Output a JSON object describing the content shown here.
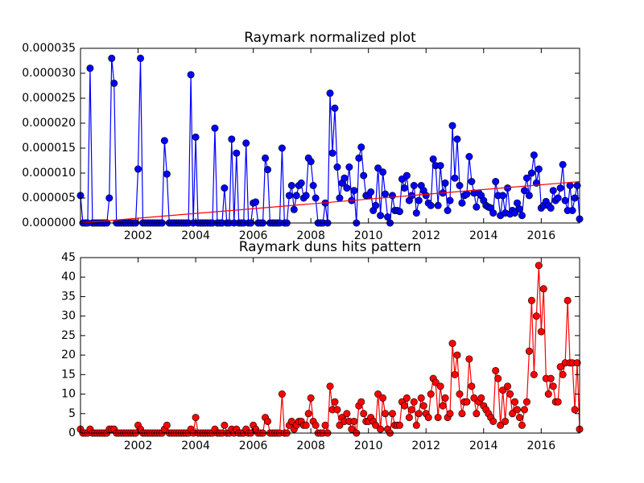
{
  "chart_data": [
    {
      "type": "line",
      "title": "Raymark normalized plot",
      "x": [
        2000,
        2000.083,
        2000.167,
        2000.25,
        2000.333,
        2000.417,
        2000.5,
        2000.583,
        2000.667,
        2000.75,
        2000.833,
        2000.917,
        2001,
        2001.083,
        2001.167,
        2001.25,
        2001.333,
        2001.417,
        2001.5,
        2001.583,
        2001.667,
        2001.75,
        2001.833,
        2001.917,
        2002,
        2002.083,
        2002.167,
        2002.25,
        2002.333,
        2002.417,
        2002.5,
        2002.583,
        2002.667,
        2002.75,
        2002.833,
        2002.917,
        2003,
        2003.083,
        2003.167,
        2003.25,
        2003.333,
        2003.417,
        2003.5,
        2003.583,
        2003.667,
        2003.75,
        2003.833,
        2003.917,
        2004,
        2004.083,
        2004.167,
        2004.25,
        2004.333,
        2004.417,
        2004.5,
        2004.583,
        2004.667,
        2004.75,
        2004.833,
        2004.917,
        2005,
        2005.083,
        2005.167,
        2005.25,
        2005.333,
        2005.417,
        2005.5,
        2005.583,
        2005.667,
        2005.75,
        2005.833,
        2005.917,
        2006,
        2006.083,
        2006.167,
        2006.25,
        2006.333,
        2006.417,
        2006.5,
        2006.583,
        2006.667,
        2006.75,
        2006.833,
        2006.917,
        2007,
        2007.083,
        2007.167,
        2007.25,
        2007.333,
        2007.417,
        2007.5,
        2007.583,
        2007.667,
        2007.75,
        2007.833,
        2007.917,
        2008,
        2008.083,
        2008.167,
        2008.25,
        2008.333,
        2008.417,
        2008.5,
        2008.583,
        2008.667,
        2008.75,
        2008.833,
        2008.917,
        2009,
        2009.083,
        2009.167,
        2009.25,
        2009.333,
        2009.417,
        2009.5,
        2009.583,
        2009.667,
        2009.75,
        2009.833,
        2009.917,
        2010,
        2010.083,
        2010.167,
        2010.25,
        2010.333,
        2010.417,
        2010.5,
        2010.583,
        2010.667,
        2010.75,
        2010.833,
        2010.917,
        2011,
        2011.083,
        2011.167,
        2011.25,
        2011.333,
        2011.417,
        2011.5,
        2011.583,
        2011.667,
        2011.75,
        2011.833,
        2011.917,
        2012,
        2012.083,
        2012.167,
        2012.25,
        2012.333,
        2012.417,
        2012.5,
        2012.583,
        2012.667,
        2012.75,
        2012.833,
        2012.917,
        2013,
        2013.083,
        2013.167,
        2013.25,
        2013.333,
        2013.417,
        2013.5,
        2013.583,
        2013.667,
        2013.75,
        2013.833,
        2013.917,
        2014,
        2014.083,
        2014.167,
        2014.25,
        2014.333,
        2014.417,
        2014.5,
        2014.583,
        2014.667,
        2014.75,
        2014.833,
        2014.917,
        2015,
        2015.083,
        2015.167,
        2015.25,
        2015.333,
        2015.417,
        2015.5,
        2015.583,
        2015.667,
        2015.75,
        2015.833,
        2015.917,
        2016,
        2016.083,
        2016.167,
        2016.25,
        2016.333,
        2016.417,
        2016.5,
        2016.583,
        2016.667,
        2016.75,
        2016.833,
        2016.917,
        2017,
        2017.083,
        2017.167,
        2017.25,
        2017.333
      ],
      "series": [
        {
          "color": "#0000ff",
          "marker": "o",
          "values": [
            5.5e-06,
            0,
            0,
            0,
            3.1e-05,
            0,
            0,
            0,
            0,
            0,
            0,
            0,
            5e-06,
            3.3e-05,
            2.8e-05,
            0,
            0,
            0,
            0,
            0,
            0,
            0,
            0,
            0,
            1.08e-05,
            3.3e-05,
            0,
            0,
            0,
            0,
            0,
            0,
            0,
            0,
            0,
            1.65e-05,
            9.8e-06,
            0,
            0,
            0,
            0,
            0,
            0,
            0,
            0,
            0,
            2.97e-05,
            0,
            1.72e-05,
            0,
            0,
            0,
            0,
            0,
            0,
            0,
            1.9e-05,
            0,
            0,
            0,
            7e-06,
            0,
            0,
            1.68e-05,
            0,
            1.4e-05,
            0,
            0,
            0,
            1.6e-05,
            0,
            0,
            4e-06,
            4.2e-06,
            0,
            0,
            0,
            1.3e-05,
            1.07e-05,
            0,
            0,
            0,
            0,
            0,
            1.5e-05,
            0,
            0,
            5.5e-06,
            7.5e-06,
            2.7e-06,
            5.5e-06,
            7.5e-06,
            8e-06,
            5e-06,
            5.5e-06,
            1.3e-05,
            1.23e-05,
            7.5e-06,
            5e-06,
            0,
            0,
            0,
            4e-06,
            0,
            2.6e-05,
            1.4e-05,
            2.3e-05,
            1.12e-05,
            5e-06,
            8e-06,
            9e-06,
            7e-06,
            1.12e-05,
            4.5e-06,
            6.5e-06,
            0,
            1.3e-05,
            1.52e-05,
            9.5e-06,
            5.5e-06,
            5.5e-06,
            6.2e-06,
            2.5e-06,
            3.5e-06,
            1.1e-05,
            1.5e-06,
            1.02e-05,
            5.8e-06,
            1.2e-06,
            0,
            5.5e-06,
            2.5e-06,
            2.5e-06,
            2.3e-06,
            8.8e-06,
            7e-06,
            9.5e-06,
            4.5e-06,
            5.5e-06,
            7.5e-06,
            2e-06,
            4.5e-06,
            7.5e-06,
            6.5e-06,
            5.5e-06,
            4e-06,
            3.5e-06,
            1.28e-05,
            1.15e-05,
            3.5e-06,
            1.15e-05,
            6e-06,
            8e-06,
            2.5e-06,
            4.5e-06,
            1.95e-05,
            9e-06,
            1.68e-05,
            7.5e-06,
            4e-06,
            5.5e-06,
            5.8e-06,
            1.33e-05,
            8.3e-06,
            6e-06,
            3.2e-06,
            6e-06,
            5.5e-06,
            4.5e-06,
            3.5e-06,
            3.2e-06,
            3e-06,
            2e-06,
            8.3e-06,
            5.5e-06,
            1.5e-06,
            5.5e-06,
            2e-06,
            7e-06,
            1.8e-06,
            2.5e-06,
            2e-06,
            4e-06,
            2.8e-06,
            1.5e-06,
            6.5e-06,
            9e-06,
            5.5e-06,
            1e-05,
            1.36e-05,
            8e-06,
            1.08e-05,
            3e-06,
            3.5e-06,
            4.3e-06,
            3.5e-06,
            3e-06,
            6.5e-06,
            4.5e-06,
            5e-06,
            7e-06,
            1.17e-05,
            4.5e-06,
            2.5e-06,
            7.5e-06,
            2.5e-06,
            5e-06,
            7.5e-06,
            8e-07
          ]
        },
        {
          "color": "#ff0000",
          "x": [
            2000,
            2017.333
          ],
          "values": [
            0,
            8.3e-06
          ]
        }
      ],
      "xlim": [
        2000,
        2017.333
      ],
      "xticks": [
        2002,
        2004,
        2006,
        2008,
        2010,
        2012,
        2014,
        2016
      ],
      "ylim": [
        0,
        3.5e-05
      ],
      "yticks": [
        {
          "value": 0,
          "label": "0.000000"
        },
        {
          "value": 5e-06,
          "label": "0.000005"
        },
        {
          "value": 1e-05,
          "label": "0.000010"
        },
        {
          "value": 1.5e-05,
          "label": "0.000015"
        },
        {
          "value": 2e-05,
          "label": "0.000020"
        },
        {
          "value": 2.5e-05,
          "label": "0.000025"
        },
        {
          "value": 3e-05,
          "label": "0.000030"
        },
        {
          "value": 3.5e-05,
          "label": "0.000035"
        }
      ]
    },
    {
      "type": "line",
      "title": "Raymark duns hits pattern",
      "x": [
        2000,
        2000.083,
        2000.167,
        2000.25,
        2000.333,
        2000.417,
        2000.5,
        2000.583,
        2000.667,
        2000.75,
        2000.833,
        2000.917,
        2001,
        2001.083,
        2001.167,
        2001.25,
        2001.333,
        2001.417,
        2001.5,
        2001.583,
        2001.667,
        2001.75,
        2001.833,
        2001.917,
        2002,
        2002.083,
        2002.167,
        2002.25,
        2002.333,
        2002.417,
        2002.5,
        2002.583,
        2002.667,
        2002.75,
        2002.833,
        2002.917,
        2003,
        2003.083,
        2003.167,
        2003.25,
        2003.333,
        2003.417,
        2003.5,
        2003.583,
        2003.667,
        2003.75,
        2003.833,
        2003.917,
        2004,
        2004.083,
        2004.167,
        2004.25,
        2004.333,
        2004.417,
        2004.5,
        2004.583,
        2004.667,
        2004.75,
        2004.833,
        2004.917,
        2005,
        2005.083,
        2005.167,
        2005.25,
        2005.333,
        2005.417,
        2005.5,
        2005.583,
        2005.667,
        2005.75,
        2005.833,
        2005.917,
        2006,
        2006.083,
        2006.167,
        2006.25,
        2006.333,
        2006.417,
        2006.5,
        2006.583,
        2006.667,
        2006.75,
        2006.833,
        2006.917,
        2007,
        2007.083,
        2007.167,
        2007.25,
        2007.333,
        2007.417,
        2007.5,
        2007.583,
        2007.667,
        2007.75,
        2007.833,
        2007.917,
        2008,
        2008.083,
        2008.167,
        2008.25,
        2008.333,
        2008.417,
        2008.5,
        2008.583,
        2008.667,
        2008.75,
        2008.833,
        2008.917,
        2009,
        2009.083,
        2009.167,
        2009.25,
        2009.333,
        2009.417,
        2009.5,
        2009.583,
        2009.667,
        2009.75,
        2009.833,
        2009.917,
        2010,
        2010.083,
        2010.167,
        2010.25,
        2010.333,
        2010.417,
        2010.5,
        2010.583,
        2010.667,
        2010.75,
        2010.833,
        2010.917,
        2011,
        2011.083,
        2011.167,
        2011.25,
        2011.333,
        2011.417,
        2011.5,
        2011.583,
        2011.667,
        2011.75,
        2011.833,
        2011.917,
        2012,
        2012.083,
        2012.167,
        2012.25,
        2012.333,
        2012.417,
        2012.5,
        2012.583,
        2012.667,
        2012.75,
        2012.833,
        2012.917,
        2013,
        2013.083,
        2013.167,
        2013.25,
        2013.333,
        2013.417,
        2013.5,
        2013.583,
        2013.667,
        2013.75,
        2013.833,
        2013.917,
        2014,
        2014.083,
        2014.167,
        2014.25,
        2014.333,
        2014.417,
        2014.5,
        2014.583,
        2014.667,
        2014.75,
        2014.833,
        2014.917,
        2015,
        2015.083,
        2015.167,
        2015.25,
        2015.333,
        2015.417,
        2015.5,
        2015.583,
        2015.667,
        2015.75,
        2015.833,
        2015.917,
        2016,
        2016.083,
        2016.167,
        2016.25,
        2016.333,
        2016.417,
        2016.5,
        2016.583,
        2016.667,
        2016.75,
        2016.833,
        2016.917,
        2017,
        2017.083,
        2017.167,
        2017.25,
        2017.333
      ],
      "series": [
        {
          "color": "#ff0000",
          "marker": "o",
          "values": [
            1,
            0,
            0,
            0,
            1,
            0,
            0,
            0,
            0,
            0,
            0,
            0,
            1,
            1,
            1,
            0,
            0,
            0,
            0,
            0,
            0,
            0,
            0,
            0,
            2,
            1,
            0,
            0,
            0,
            0,
            0,
            0,
            0,
            0,
            0,
            1,
            2,
            0,
            0,
            0,
            0,
            0,
            0,
            0,
            0,
            0,
            1,
            0,
            4,
            0,
            0,
            0,
            0,
            0,
            0,
            0,
            1,
            0,
            0,
            0,
            2,
            0,
            0,
            1,
            0,
            1,
            0,
            0,
            0,
            1,
            0,
            0,
            2,
            1,
            0,
            0,
            0,
            4,
            3,
            0,
            0,
            0,
            0,
            0,
            10,
            0,
            0,
            2,
            3,
            1,
            2,
            3,
            3,
            2,
            2,
            5,
            9,
            3,
            2,
            0,
            0,
            0,
            2,
            0,
            12,
            6,
            8,
            6,
            2,
            4,
            3,
            5,
            3,
            1,
            3,
            0,
            7,
            8,
            5,
            3,
            3,
            4,
            3,
            2,
            10,
            1,
            9,
            5,
            1,
            0,
            5,
            2,
            2,
            2,
            8,
            7,
            9,
            4,
            6,
            8,
            2,
            5,
            9,
            7,
            5,
            4,
            10,
            14,
            13,
            4,
            12,
            7,
            9,
            4,
            5,
            23,
            15,
            20,
            10,
            5,
            8,
            8,
            19,
            12,
            9,
            5,
            8,
            9,
            7,
            6,
            5,
            4,
            3,
            16,
            14,
            2,
            11,
            3,
            12,
            10,
            5,
            8,
            6,
            4,
            2,
            6,
            8,
            21,
            34,
            15,
            30,
            43,
            26,
            37,
            14,
            10,
            14,
            12,
            8,
            8,
            17,
            15,
            18,
            34,
            18,
            18,
            6,
            18,
            1
          ]
        }
      ],
      "xlim": [
        2000,
        2017.333
      ],
      "xticks": [
        2002,
        2004,
        2006,
        2008,
        2010,
        2012,
        2014,
        2016
      ],
      "ylim": [
        0,
        45
      ],
      "yticks": [
        0,
        5,
        10,
        15,
        20,
        25,
        30,
        35,
        40,
        45
      ]
    }
  ]
}
